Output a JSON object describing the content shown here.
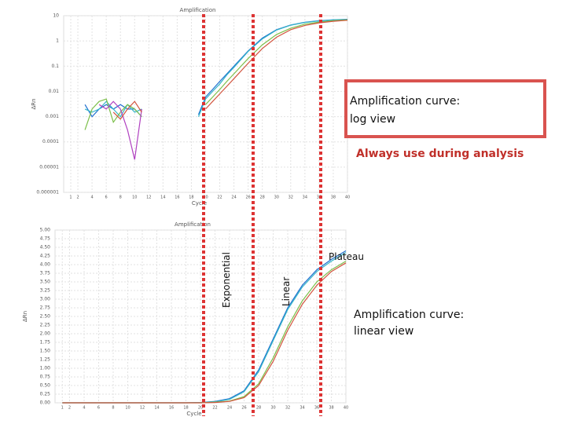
{
  "chart_data": [
    {
      "type": "line",
      "title": "Amplification",
      "xlabel": "Cycle",
      "ylabel": "ΔRn",
      "yscale": "log",
      "grid": true,
      "x": [
        3,
        4,
        5,
        6,
        7,
        8,
        9,
        10,
        11,
        15,
        19,
        20,
        21,
        22,
        23,
        24,
        26,
        28,
        30,
        32,
        34,
        36,
        38,
        40
      ],
      "xlim": [
        0,
        40
      ],
      "xticks": [
        1,
        2,
        4,
        6,
        8,
        10,
        12,
        14,
        16,
        18,
        20,
        22,
        24,
        26,
        28,
        30,
        32,
        34,
        36,
        38,
        40
      ],
      "ylim": [
        1e-06,
        10
      ],
      "yticks": [
        10,
        1,
        0.1,
        0.01,
        0.001,
        0.0001,
        1e-05,
        1e-06
      ],
      "series": [
        {
          "color": "#1f6fd0",
          "values": [
            0.003,
            0.001,
            0.002,
            0.003,
            0.002,
            0.003,
            0.002,
            0.002,
            0.001,
            null,
            0.0012,
            0.006,
            0.012,
            0.025,
            0.05,
            0.1,
            0.4,
            1.3,
            2.8,
            4.3,
            5.5,
            6.3,
            6.9,
            7.2
          ]
        },
        {
          "color": "#35b6c9",
          "values": [
            0.002,
            0.0015,
            0.002,
            0.004,
            0.002,
            0.001,
            0.003,
            0.0015,
            0.002,
            null,
            0.001,
            0.005,
            0.01,
            0.02,
            0.045,
            0.09,
            0.38,
            1.2,
            2.7,
            4.2,
            5.4,
            6.2,
            6.8,
            7.1
          ]
        },
        {
          "color": "#7cbf4a",
          "values": [
            0.0003,
            0.002,
            0.004,
            0.005,
            0.0006,
            0.0015,
            0.003,
            0.002,
            0.001,
            null,
            null,
            0.003,
            0.006,
            0.012,
            0.025,
            0.05,
            0.2,
            0.7,
            1.8,
            3.2,
            4.6,
            5.6,
            6.3,
            6.8
          ]
        },
        {
          "color": "#b040c0",
          "values": [
            null,
            null,
            0.003,
            0.002,
            0.004,
            0.002,
            0.0003,
            2e-05,
            0.002,
            null,
            null,
            null,
            null,
            null,
            null,
            null,
            null,
            null,
            null,
            null,
            null,
            null,
            null,
            null
          ]
        },
        {
          "color": "#d2553f",
          "values": [
            null,
            null,
            null,
            null,
            0.0015,
            0.0008,
            0.002,
            0.004,
            0.0015,
            null,
            null,
            0.002,
            0.004,
            0.008,
            0.016,
            0.032,
            0.13,
            0.5,
            1.4,
            2.8,
            4.1,
            5.2,
            6.0,
            6.6
          ]
        }
      ],
      "annotations": [
        "Amplification curve:",
        "log view",
        "Always use during analysis"
      ]
    },
    {
      "type": "line",
      "title": "Amplification",
      "xlabel": "Cycle",
      "ylabel": "ΔRn",
      "grid": true,
      "x": [
        1,
        5,
        10,
        15,
        18,
        20,
        22,
        24,
        26,
        28,
        30,
        32,
        34,
        36,
        38,
        40
      ],
      "xlim": [
        0,
        40
      ],
      "xticks": [
        1,
        2,
        4,
        6,
        8,
        10,
        12,
        14,
        16,
        18,
        20,
        22,
        24,
        26,
        28,
        30,
        32,
        34,
        36,
        38,
        40
      ],
      "ylim": [
        0,
        5
      ],
      "yticks": [
        {
          "value": 0,
          "label": "0.00"
        },
        {
          "value": 0.25,
          "label": "0.25"
        },
        {
          "value": 0.5,
          "label": "0.50"
        },
        {
          "value": 0.75,
          "label": "0.75"
        },
        {
          "value": 1,
          "label": "1.00"
        },
        {
          "value": 1.25,
          "label": "1.25"
        },
        {
          "value": 1.5,
          "label": "1.50"
        },
        {
          "value": 1.75,
          "label": "1.75"
        },
        {
          "value": 2,
          "label": "2.00"
        },
        {
          "value": 2.25,
          "label": "2.25"
        },
        {
          "value": 2.5,
          "label": "2.50"
        },
        {
          "value": 2.75,
          "label": "2.75"
        },
        {
          "value": 3,
          "label": "3.00"
        },
        {
          "value": 3.25,
          "label": "3.25"
        },
        {
          "value": 3.5,
          "label": "3.50"
        },
        {
          "value": 3.75,
          "label": "3.75"
        },
        {
          "value": 4,
          "label": "4.00"
        },
        {
          "value": 4.25,
          "label": "4.25"
        },
        {
          "value": 4.5,
          "label": "4.50"
        },
        {
          "value": 4.75,
          "label": "4.75"
        },
        {
          "value": 5,
          "label": "5.00"
        }
      ],
      "series": [
        {
          "color": "#1f6fd0",
          "values": [
            0,
            0,
            0,
            0,
            0,
            0.01,
            0.04,
            0.12,
            0.35,
            0.95,
            1.85,
            2.75,
            3.4,
            3.85,
            4.15,
            4.4
          ]
        },
        {
          "color": "#35b6c9",
          "values": [
            0,
            0,
            0,
            0,
            0,
            0.01,
            0.03,
            0.1,
            0.32,
            0.9,
            1.8,
            2.7,
            3.35,
            3.8,
            4.1,
            4.35
          ]
        },
        {
          "color": "#7cbf4a",
          "values": [
            0,
            0,
            0,
            0,
            0,
            0,
            0.02,
            0.05,
            0.18,
            0.55,
            1.3,
            2.2,
            2.95,
            3.5,
            3.85,
            4.1
          ]
        },
        {
          "color": "#d2553f",
          "values": [
            0,
            0,
            0,
            0,
            0,
            0,
            0.01,
            0.04,
            0.15,
            0.5,
            1.2,
            2.1,
            2.85,
            3.4,
            3.8,
            4.05
          ]
        }
      ],
      "annotations": [
        "Exponential",
        "Linear",
        "Plateau",
        "Amplification curve:",
        "linear view"
      ]
    }
  ]
}
